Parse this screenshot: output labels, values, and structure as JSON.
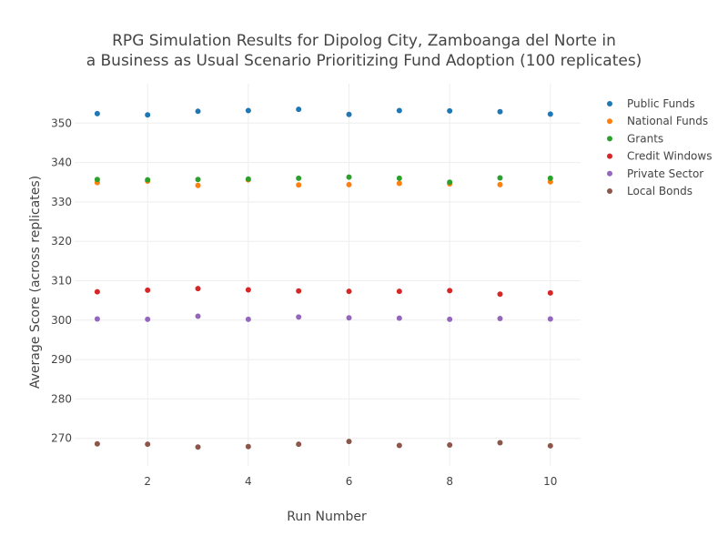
{
  "chart_data": {
    "type": "scatter",
    "title_lines": [
      "RPG Simulation Results for Dipolog City, Zamboanga del Norte in",
      "a Business as Usual Scenario Prioritizing Fund Adoption (100 replicates)"
    ],
    "xlabel": "Run Number",
    "ylabel": "Average Score (across replicates)",
    "xlim": [
      0.55,
      10.6
    ],
    "ylim": [
      263,
      360
    ],
    "x_ticks": [
      2,
      4,
      6,
      8,
      10
    ],
    "y_ticks": [
      270,
      280,
      290,
      300,
      310,
      320,
      330,
      340,
      350
    ],
    "grid": true,
    "legend_position": "right",
    "x": [
      1,
      2,
      3,
      4,
      5,
      6,
      7,
      8,
      9,
      10
    ],
    "series": [
      {
        "name": "Public Funds",
        "color": "#1f77b4",
        "values": [
          352.4,
          352.1,
          353.0,
          353.2,
          353.5,
          352.2,
          353.2,
          353.1,
          352.9,
          352.3
        ]
      },
      {
        "name": "National Funds",
        "color": "#ff7f0e",
        "values": [
          334.9,
          335.3,
          334.2,
          335.6,
          334.3,
          334.4,
          334.7,
          334.6,
          334.4,
          335.1
        ]
      },
      {
        "name": "Grants",
        "color": "#2ca02c",
        "values": [
          335.7,
          335.6,
          335.7,
          335.8,
          336.0,
          336.3,
          336.0,
          335.0,
          336.1,
          336.0
        ]
      },
      {
        "name": "Credit Windows",
        "color": "#d62728",
        "values": [
          307.2,
          307.6,
          308.0,
          307.7,
          307.4,
          307.3,
          307.3,
          307.5,
          306.6,
          306.9
        ]
      },
      {
        "name": "Private Sector",
        "color": "#9467bd",
        "values": [
          300.3,
          300.2,
          301.0,
          300.2,
          300.8,
          300.6,
          300.5,
          300.2,
          300.4,
          300.3
        ]
      },
      {
        "name": "Local Bonds",
        "color": "#8c564b",
        "values": [
          268.6,
          268.5,
          267.8,
          267.9,
          268.5,
          269.2,
          268.2,
          268.3,
          268.9,
          268.1
        ]
      }
    ]
  }
}
